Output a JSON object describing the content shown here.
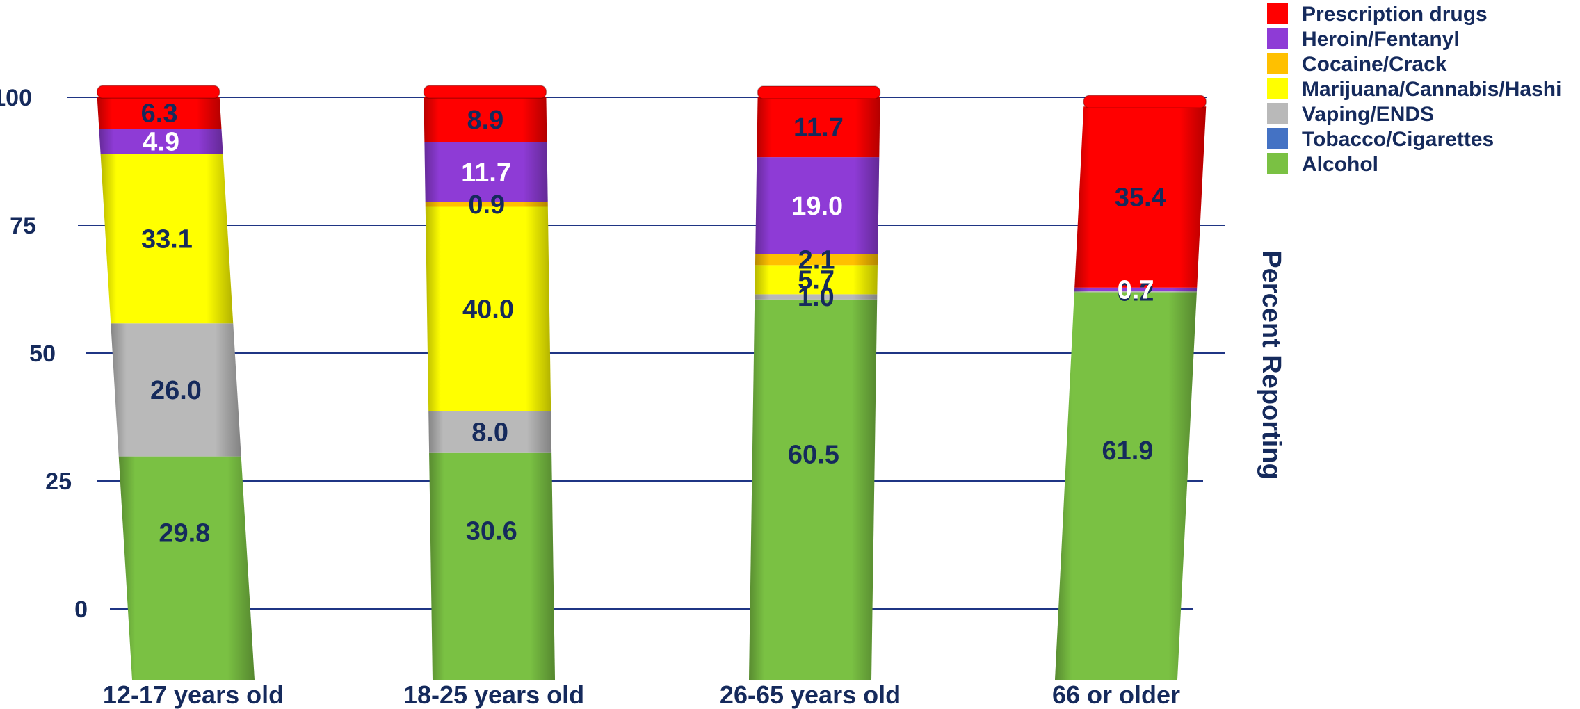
{
  "chart_data": {
    "type": "bar",
    "stacked": true,
    "categories": [
      "12-17 years old",
      "18-25 years old",
      "26-65 years old",
      "66 or older"
    ],
    "series": [
      {
        "name": "Alcohol",
        "color": "#7ac143",
        "values": [
          29.8,
          30.6,
          60.5,
          61.9
        ]
      },
      {
        "name": "Tobacco/Cigarettes",
        "color": "#4472c4",
        "values": [
          0,
          0,
          0,
          0
        ]
      },
      {
        "name": "Vaping/ENDS",
        "color": "#b9b9b9",
        "values": [
          26.0,
          8.0,
          1.0,
          0.2
        ]
      },
      {
        "name": "Marijuana/Cannabis/Hashi",
        "color": "#ffff00",
        "values": [
          33.1,
          40.0,
          5.7,
          0
        ]
      },
      {
        "name": "Cocaine/Crack",
        "color": "#ffc000",
        "values": [
          0,
          0.9,
          2.1,
          0
        ]
      },
      {
        "name": "Heroin/Fentanyl",
        "color": "#8e3bd6",
        "values": [
          4.9,
          11.7,
          19.0,
          0.7
        ]
      },
      {
        "name": "Prescription drugs",
        "color": "#ff0000",
        "values": [
          6.3,
          8.9,
          11.7,
          35.4
        ]
      }
    ],
    "data_labels": [
      {
        "series": "Alcohol",
        "labels": [
          "29.8",
          "30.6",
          "60.5",
          "61.9"
        ]
      },
      {
        "series": "Vaping/ENDS",
        "labels": [
          "26.0",
          "8.0",
          "1.0",
          "0.2"
        ]
      },
      {
        "series": "Marijuana/Cannabis/Hashi",
        "labels": [
          "33.1",
          "40.0",
          "5.7",
          ""
        ]
      },
      {
        "series": "Cocaine/Crack",
        "labels": [
          "",
          "0.9",
          "2.1",
          ""
        ]
      },
      {
        "series": "Heroin/Fentanyl",
        "labels": [
          "4.9",
          "11.7",
          "19.0",
          "0.7"
        ]
      },
      {
        "series": "Prescription drugs",
        "labels": [
          "6.3",
          "8.9",
          "11.7",
          "35.4"
        ]
      }
    ],
    "yticks": [
      "0",
      "25",
      "50",
      "75",
      "100"
    ],
    "ylim": [
      0,
      100
    ],
    "ylabel": "Percent Reporting",
    "xlabel": "",
    "title": "",
    "legend_position": "top-right",
    "legend_order": [
      "Prescription drugs",
      "Heroin/Fentanyl",
      "Cocaine/Crack",
      "Marijuana/Cannabis/Hashi",
      "Vaping/ENDS",
      "Tobacco/Cigarettes",
      "Alcohol"
    ],
    "grid": true,
    "gridline_color": "#1f3584",
    "text_color": "#152a5c"
  }
}
